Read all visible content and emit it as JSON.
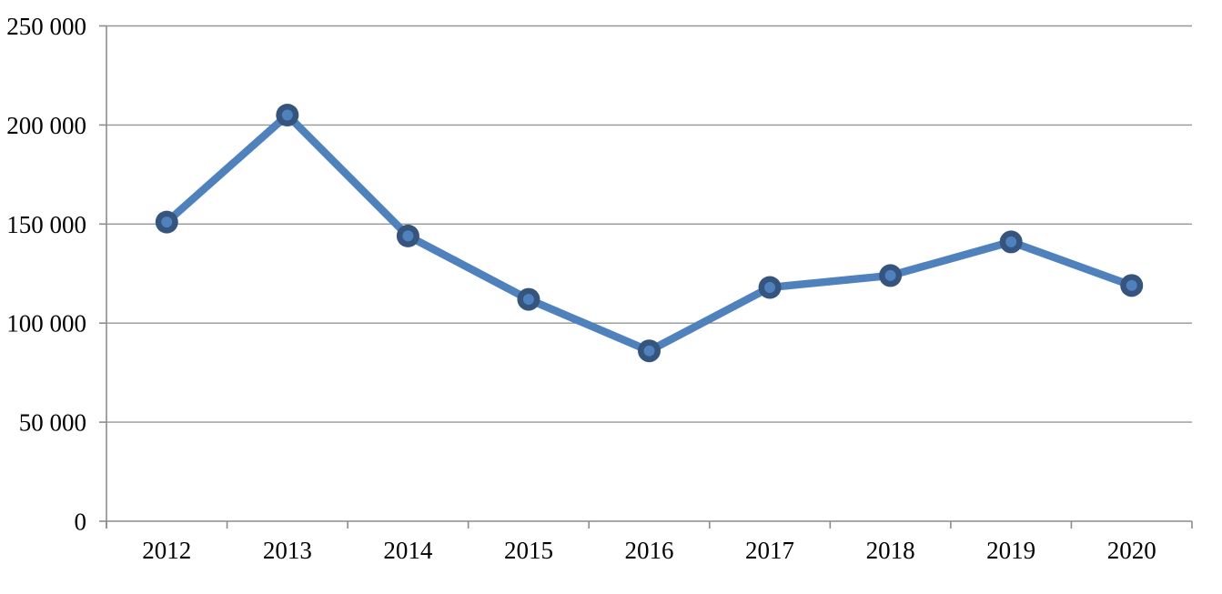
{
  "chart_data": {
    "type": "line",
    "title": "",
    "xlabel": "",
    "ylabel": "",
    "categories": [
      "2012",
      "2013",
      "2014",
      "2015",
      "2016",
      "2017",
      "2018",
      "2019",
      "2020"
    ],
    "series": [
      {
        "name": "",
        "values": [
          151000,
          205000,
          144000,
          112000,
          86000,
          118000,
          124000,
          141000,
          119000
        ]
      }
    ],
    "ylim": [
      0,
      250000
    ],
    "ytick_step": 50000,
    "yticks": [
      {
        "value": 0,
        "label": "0"
      },
      {
        "value": 50000,
        "label": "50 000"
      },
      {
        "value": 100000,
        "label": "100 000"
      },
      {
        "value": 150000,
        "label": "150 000"
      },
      {
        "value": 200000,
        "label": "200 000"
      },
      {
        "value": 250000,
        "label": "250 000"
      }
    ],
    "grid": true,
    "legend": false,
    "marker": "circle"
  },
  "colors": {
    "line": "#4F81BD",
    "marker_fill": "#4F81BD",
    "marker_border": "#36557E",
    "gridline": "#969696",
    "axis": "#8C8C8C",
    "text": "#000000",
    "background": "#FFFFFF"
  }
}
